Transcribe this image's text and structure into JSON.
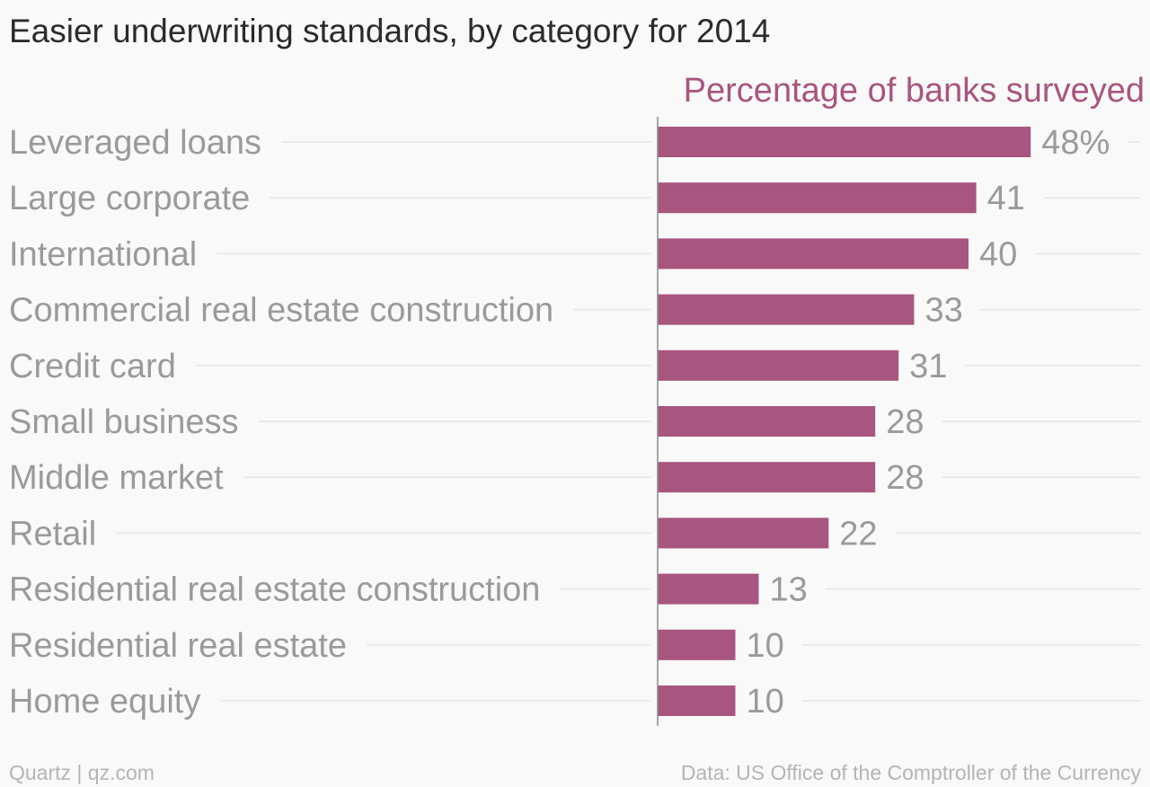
{
  "chart_data": {
    "type": "bar",
    "orientation": "horizontal",
    "title": "Easier underwriting standards, by category for 2014",
    "subtitle": "Percentage of banks surveyed",
    "categories": [
      "Leveraged loans",
      "Large corporate",
      "International",
      "Commercial real estate construction",
      "Credit card",
      "Small business",
      "Middle market",
      "Retail",
      "Residential real estate construction",
      "Residential real estate",
      "Home equity"
    ],
    "values": [
      48,
      41,
      40,
      33,
      31,
      28,
      28,
      22,
      13,
      10,
      10
    ],
    "value_labels": [
      "48%",
      "41",
      "40",
      "33",
      "31",
      "28",
      "28",
      "22",
      "13",
      "10",
      "10"
    ],
    "xlim": [
      0,
      62
    ],
    "bar_color": "#a8557f",
    "grid": true
  },
  "footer": {
    "source_left": "Quartz | qz.com",
    "source_right": "Data: US Office of the Comptroller of the Currency"
  },
  "colors": {
    "bar": "#a8557f",
    "subtitle": "#a8557f",
    "label": "#9a9a9a",
    "title": "#2b2b2b"
  }
}
